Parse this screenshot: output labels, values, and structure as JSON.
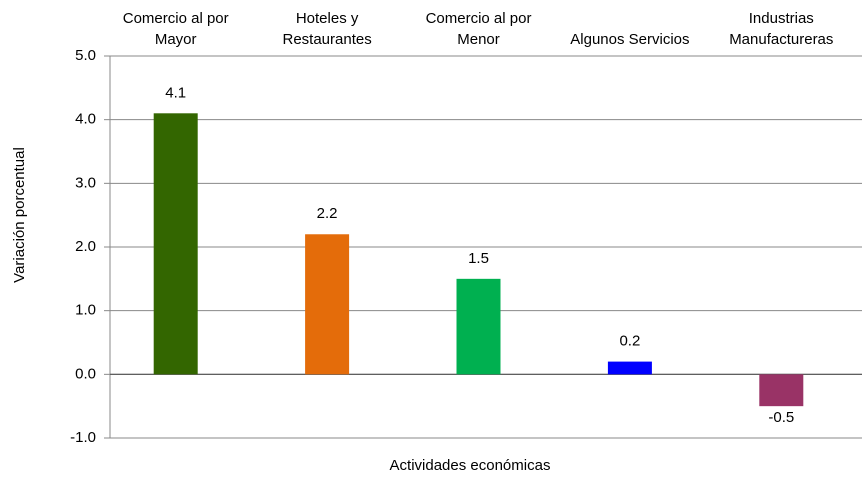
{
  "chart_data": {
    "type": "bar",
    "categories": [
      "Comercio al por\nMayor",
      "Hoteles y\nRestaurantes",
      "Comercio al por\nMenor",
      "Algunos Servicios",
      "Industrias\nManufactureras"
    ],
    "values": [
      4.1,
      2.2,
      1.5,
      0.2,
      -0.5
    ],
    "colors": [
      "#336600",
      "#e46c0a",
      "#00b050",
      "#0000ff",
      "#993366"
    ],
    "ylim": [
      -1,
      5
    ],
    "yticks": [
      {
        "value": -1,
        "label": "-1.0"
      },
      {
        "value": 0,
        "label": "0.0"
      },
      {
        "value": 1,
        "label": "1.0"
      },
      {
        "value": 2,
        "label": "2.0"
      },
      {
        "value": 3,
        "label": "3.0"
      },
      {
        "value": 4,
        "label": "4.0"
      },
      {
        "value": 5,
        "label": "5.0"
      }
    ],
    "grid": true,
    "x_label": "Actividades económicas",
    "y_label": "Variación porcentual"
  }
}
